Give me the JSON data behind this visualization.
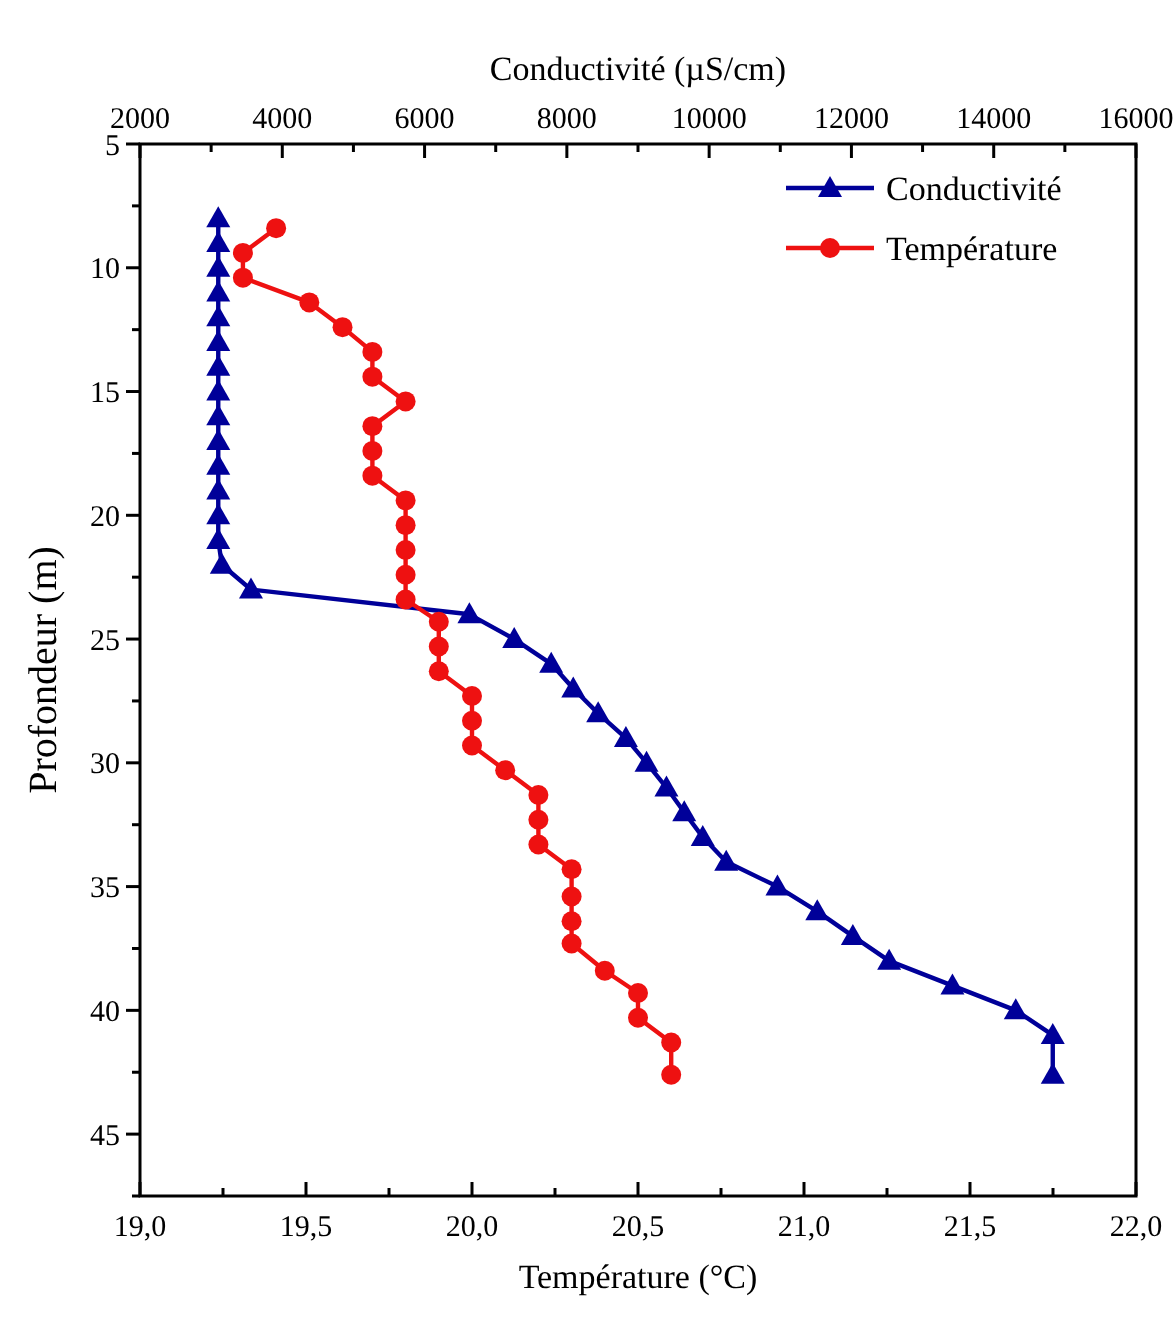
{
  "chart_data": {
    "type": "line",
    "xlabel": "Température (°C)",
    "x2label": "Conductivité (µS/cm)",
    "ylabel": "Profondeur (m)",
    "xlim": [
      19,
      22
    ],
    "xticks": [
      {
        "value": 19,
        "label": "19,0"
      },
      {
        "value": 19.25,
        "label": null
      },
      {
        "value": 19.5,
        "label": "19,5"
      },
      {
        "value": 19.75,
        "label": null
      },
      {
        "value": 20,
        "label": "20,0"
      },
      {
        "value": 20.25,
        "label": null
      },
      {
        "value": 20.5,
        "label": "20,5"
      },
      {
        "value": 20.75,
        "label": null
      },
      {
        "value": 21,
        "label": "21,0"
      },
      {
        "value": 21.25,
        "label": null
      },
      {
        "value": 21.5,
        "label": "21,5"
      },
      {
        "value": 21.75,
        "label": null
      },
      {
        "value": 22,
        "label": "22,0"
      }
    ],
    "x2lim": [
      2000,
      16000
    ],
    "x2ticks": [
      2000,
      {
        "value": 3000,
        "label": null
      },
      4000,
      {
        "value": 5000,
        "label": null
      },
      6000,
      {
        "value": 7000,
        "label": null
      },
      8000,
      {
        "value": 9000,
        "label": null
      },
      10000,
      {
        "value": 11000,
        "label": null
      },
      12000,
      {
        "value": 13000,
        "label": null
      },
      14000,
      {
        "value": 15000,
        "label": null
      },
      16000
    ],
    "ylim": [
      47.5,
      5
    ],
    "yticks": [
      5,
      {
        "value": 7.5,
        "label": null
      },
      10,
      {
        "value": 12.5,
        "label": null
      },
      15,
      {
        "value": 17.5,
        "label": null
      },
      20,
      {
        "value": 22.5,
        "label": null
      },
      25,
      {
        "value": 27.5,
        "label": null
      },
      30,
      {
        "value": 32.5,
        "label": null
      },
      35,
      {
        "value": 37.5,
        "label": null
      },
      40,
      {
        "value": 42.5,
        "label": null
      },
      45,
      {
        "value": 47.5,
        "label": null
      }
    ],
    "legend": "top right",
    "grid": false,
    "line_style": "solid",
    "series": [
      {
        "name": "Conductivité",
        "color": "#000099",
        "axis": "x2",
        "marker": "triangle",
        "x": [
          3100,
          3100,
          3100,
          3100,
          3100,
          3100,
          3100,
          3100,
          3100,
          3100,
          3100,
          3100,
          3100,
          3100,
          3150,
          3560,
          6630,
          7260,
          7780,
          8090,
          8440,
          8830,
          9120,
          9400,
          9650,
          9910,
          10240,
          10960,
          11520,
          12020,
          12530,
          13420,
          14310,
          14830,
          14830
        ],
        "values": [
          8,
          9,
          10,
          11,
          12,
          13,
          14,
          15,
          16,
          17,
          18,
          19,
          20,
          21,
          22,
          23,
          24,
          25,
          26,
          27,
          28,
          29,
          30,
          31,
          32,
          33,
          34,
          35,
          36,
          37,
          38,
          39,
          40,
          41,
          42.6
        ]
      },
      {
        "name": "Température",
        "color": "#ee1111",
        "marker": "circle",
        "x": [
          19.41,
          19.31,
          19.31,
          19.51,
          19.61,
          19.7,
          19.7,
          19.8,
          19.7,
          19.7,
          19.7,
          19.8,
          19.8,
          19.8,
          19.8,
          19.8,
          19.9,
          19.9,
          19.9,
          20,
          20,
          20,
          20.1,
          20.2,
          20.2,
          20.2,
          20.3,
          20.3,
          20.3,
          20.3,
          20.4,
          20.5,
          20.5,
          20.6,
          20.6
        ],
        "values": [
          8.4,
          9.4,
          10.4,
          11.4,
          12.4,
          13.4,
          14.4,
          15.4,
          16.4,
          17.4,
          18.4,
          19.4,
          20.4,
          21.4,
          22.4,
          23.4,
          24.3,
          25.3,
          26.3,
          27.3,
          28.3,
          29.3,
          30.3,
          31.3,
          32.3,
          33.3,
          34.3,
          35.4,
          36.4,
          37.3,
          38.4,
          39.3,
          40.3,
          41.3,
          42.6
        ]
      }
    ]
  }
}
